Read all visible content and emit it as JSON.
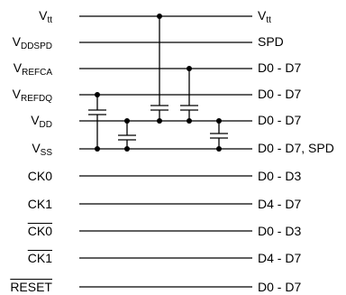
{
  "rows": [
    {
      "left": {
        "base": "V",
        "sub": "tt"
      },
      "right": {
        "base": "V",
        "sub": "tt"
      }
    },
    {
      "left": {
        "base": "V",
        "sub": "DDSPD"
      },
      "right": {
        "base": "SPD",
        "sub": ""
      }
    },
    {
      "left": {
        "base": "V",
        "sub": "REFCA"
      },
      "right": {
        "base": "D0 - D7",
        "sub": ""
      }
    },
    {
      "left": {
        "base": "V",
        "sub": "REFDQ"
      },
      "right": {
        "base": "D0 - D7",
        "sub": ""
      }
    },
    {
      "left": {
        "base": "V",
        "sub": "DD"
      },
      "right": {
        "base": "D0 - D7",
        "sub": ""
      }
    },
    {
      "left": {
        "base": "V",
        "sub": "SS"
      },
      "right": {
        "base": "D0 - D7, SPD",
        "sub": ""
      }
    },
    {
      "left": {
        "base": "CK0",
        "sub": ""
      },
      "right": {
        "base": "D0 - D3",
        "sub": ""
      }
    },
    {
      "left": {
        "base": "CK1",
        "sub": ""
      },
      "right": {
        "base": "D4 - D7",
        "sub": ""
      }
    },
    {
      "left": {
        "base": "CK0",
        "sub": ""
      },
      "right": {
        "base": "D0 - D3",
        "sub": ""
      }
    },
    {
      "left": {
        "base": "CK1",
        "sub": ""
      },
      "right": {
        "base": "D4 - D7",
        "sub": ""
      }
    },
    {
      "left": {
        "base": "RESET",
        "sub": ""
      },
      "right": {
        "base": "D0 - D7",
        "sub": ""
      }
    }
  ]
}
